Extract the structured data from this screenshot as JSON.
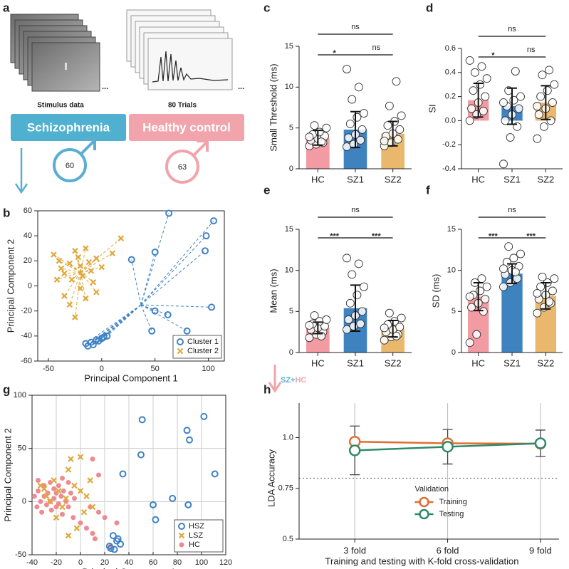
{
  "panel_a": {
    "label": "a",
    "stimulus_caption": "Stimulus data",
    "trials_caption": "80 Trials",
    "ellipsis": "...",
    "sz_button": "Schizophrenia",
    "hc_button": "Healthy control",
    "sz_count": 60,
    "hc_count": 63
  },
  "arrow_label": [
    "SZ+",
    "HC"
  ],
  "chart_data": [
    {
      "type": "scatter",
      "panel_label": "b",
      "xlabel": "Principal Component 1",
      "ylabel": "Principal Component 2",
      "xlim": [
        -60,
        115
      ],
      "xticks": [
        -50,
        0,
        50,
        100
      ],
      "ylim": [
        -60,
        60
      ],
      "yticks": [
        -60,
        -40,
        -20,
        0,
        20,
        40,
        60
      ],
      "grid": false,
      "centroid_lines": true,
      "legend": "lower right",
      "series": [
        {
          "name": "Cluster 1",
          "color": "#3f82c4",
          "marker": "circle",
          "x": [
            63,
            105,
            98,
            97,
            50,
            28,
            103,
            50,
            62,
            47,
            80,
            5,
            0,
            -5,
            -10,
            -15,
            -13,
            -8,
            -3,
            2
          ],
          "y": [
            58,
            52,
            40,
            28,
            27,
            21,
            -17,
            -20,
            -23,
            -36,
            -36,
            -40,
            -42,
            -43,
            -45,
            -46,
            -48,
            -47,
            -44,
            -41
          ]
        },
        {
          "name": "Cluster 2",
          "color": "#e0a83a",
          "marker": "x",
          "x": [
            -45,
            -40,
            -38,
            -35,
            -30,
            -28,
            -25,
            -22,
            -20,
            -18,
            -15,
            -12,
            -10,
            -8,
            -5,
            -35,
            -30,
            -25,
            -20,
            -15,
            -42,
            10,
            18,
            -5,
            0
          ],
          "y": [
            25,
            20,
            14,
            10,
            18,
            5,
            28,
            23,
            16,
            8,
            30,
            19,
            12,
            3,
            22,
            -8,
            -15,
            -25,
            -2,
            -10,
            5,
            26,
            38,
            -5,
            15
          ]
        }
      ]
    },
    {
      "type": "bar",
      "panel_label": "c",
      "ylabel": "Small Threshold (ms)",
      "categories": [
        "HC",
        "SZ1",
        "SZ2"
      ],
      "values": [
        3.8,
        4.8,
        4.3
      ],
      "errors": [
        0.9,
        2.2,
        1.5
      ],
      "colors": [
        "#f29ba2",
        "#3e82c0",
        "#e9b86c"
      ],
      "ylim": [
        0,
        15
      ],
      "yticks": [
        0,
        5,
        10,
        15
      ],
      "points": [
        [
          2.8,
          3.0,
          3.2,
          3.5,
          3.7,
          4.0,
          4.2,
          4.5,
          5.0,
          5.3,
          3.3,
          3.9
        ],
        [
          2.7,
          3.0,
          3.5,
          3.8,
          4.2,
          4.8,
          5.5,
          6.3,
          6.8,
          8.5,
          10.0,
          12.2
        ],
        [
          2.8,
          3.2,
          3.6,
          4.0,
          4.3,
          4.8,
          5.3,
          5.8,
          6.5,
          7.7,
          10.7,
          3.4
        ]
      ],
      "comparisons": [
        {
          "from": "HC",
          "to": "SZ2",
          "label": "ns"
        },
        {
          "from": "HC",
          "to": "SZ1",
          "label": "*"
        },
        {
          "from": "SZ1",
          "to": "SZ2",
          "label": "ns"
        }
      ]
    },
    {
      "type": "bar",
      "panel_label": "d",
      "ylabel": "SI",
      "categories": [
        "HC",
        "SZ1",
        "SZ2"
      ],
      "values": [
        0.17,
        0.12,
        0.15
      ],
      "errors": [
        0.14,
        0.15,
        0.14
      ],
      "colors": [
        "#f29ba2",
        "#3e82c0",
        "#e9b86c"
      ],
      "ylim": [
        -0.4,
        0.6
      ],
      "yticks": [
        -0.4,
        -0.2,
        {
          "value": 0,
          "label": "0.0"
        },
        0.2,
        0.4,
        0.6
      ],
      "points": [
        [
          0.0,
          0.05,
          0.08,
          0.1,
          0.15,
          0.2,
          0.25,
          0.3,
          0.35,
          0.4,
          0.45,
          0.5
        ],
        [
          -0.36,
          -0.14,
          -0.05,
          0.0,
          0.05,
          0.1,
          0.12,
          0.17,
          0.2,
          0.25,
          0.41,
          0.15
        ],
        [
          -0.15,
          -0.05,
          0.0,
          0.05,
          0.1,
          0.15,
          0.2,
          0.25,
          0.3,
          0.38,
          0.42,
          0.12
        ]
      ],
      "comparisons": [
        {
          "from": "HC",
          "to": "SZ2",
          "label": "ns"
        },
        {
          "from": "HC",
          "to": "SZ1",
          "label": "*"
        },
        {
          "from": "SZ1",
          "to": "SZ2",
          "label": "ns"
        }
      ]
    },
    {
      "type": "bar",
      "panel_label": "e",
      "ylabel": "Mean (ms)",
      "categories": [
        "HC",
        "SZ1",
        "SZ2"
      ],
      "values": [
        3.0,
        5.4,
        2.9
      ],
      "errors": [
        0.7,
        2.8,
        1.0
      ],
      "colors": [
        "#f29ba2",
        "#3e82c0",
        "#e9b86c"
      ],
      "ylim": [
        0,
        15
      ],
      "yticks": [
        0,
        5,
        10,
        15
      ],
      "points": [
        [
          1.8,
          2.2,
          2.5,
          2.8,
          3.0,
          3.2,
          3.5,
          3.8,
          4.0,
          4.5,
          2.0,
          3.3
        ],
        [
          2.8,
          3.2,
          3.5,
          4.0,
          4.5,
          5.0,
          6.0,
          7.0,
          8.0,
          9.5,
          10.8,
          11.5
        ],
        [
          1.5,
          1.9,
          2.2,
          2.5,
          2.8,
          3.1,
          3.4,
          3.8,
          4.2,
          4.8,
          2.0,
          3.0
        ]
      ],
      "comparisons": [
        {
          "from": "HC",
          "to": "SZ2",
          "label": "ns"
        },
        {
          "from": "HC",
          "to": "SZ1",
          "label": "***"
        },
        {
          "from": "SZ1",
          "to": "SZ2",
          "label": "***"
        }
      ]
    },
    {
      "type": "bar",
      "panel_label": "f",
      "ylabel": "SD (ms)",
      "categories": [
        "HC",
        "SZ1",
        "SZ2"
      ],
      "values": [
        6.8,
        9.6,
        6.9
      ],
      "errors": [
        1.7,
        1.2,
        1.6
      ],
      "colors": [
        "#f29ba2",
        "#3e82c0",
        "#e9b86c"
      ],
      "ylim": [
        0,
        15
      ],
      "yticks": [
        0,
        5,
        10,
        15
      ],
      "points": [
        [
          1.2,
          2.2,
          5.0,
          5.5,
          6.0,
          6.5,
          7.0,
          7.5,
          8.0,
          8.5,
          9.0,
          6.8
        ],
        [
          8.0,
          8.5,
          9.0,
          9.5,
          10.0,
          10.5,
          11.0,
          11.5,
          12.0,
          12.9,
          9.8,
          10.2
        ],
        [
          4.8,
          5.5,
          6.0,
          6.5,
          7.0,
          7.5,
          8.0,
          8.5,
          9.0,
          9.2,
          6.2,
          7.2
        ]
      ],
      "comparisons": [
        {
          "from": "HC",
          "to": "SZ2",
          "label": "ns"
        },
        {
          "from": "HC",
          "to": "SZ1",
          "label": "***"
        },
        {
          "from": "SZ1",
          "to": "SZ2",
          "label": "***"
        }
      ]
    },
    {
      "type": "scatter",
      "panel_label": "g",
      "xlabel": "Principal Component 1",
      "ylabel": "Principal Component 2",
      "xlim": [
        -40,
        120
      ],
      "xticks": [
        -40,
        -20,
        0,
        20,
        40,
        60,
        80,
        100,
        120
      ],
      "ylim": [
        -50,
        100
      ],
      "yticks": [
        -50,
        0,
        50,
        100
      ],
      "grid": true,
      "centroid_lines": false,
      "legend": "lower right",
      "series": [
        {
          "name": "HSZ",
          "color": "#3f82c4",
          "marker": "circle",
          "x": [
            51,
            102,
            88,
            90,
            50,
            111,
            35,
            60,
            76,
            89,
            62,
            27,
            30,
            33,
            25,
            28,
            24,
            31
          ],
          "y": [
            77,
            80,
            67,
            58,
            44,
            26,
            26,
            -3,
            3,
            -3,
            -17,
            -32,
            -37,
            -40,
            -44,
            -45,
            -42,
            -35
          ]
        },
        {
          "name": "LSZ",
          "color": "#e0a83a",
          "marker": "x",
          "x": [
            -33,
            -28,
            -25,
            -22,
            -18,
            -15,
            -12,
            -10,
            -8,
            0,
            -5,
            0,
            5,
            10,
            8,
            -3,
            -10,
            -20,
            3,
            -30
          ],
          "y": [
            15,
            5,
            0,
            20,
            10,
            -5,
            3,
            30,
            40,
            42,
            15,
            10,
            5,
            -5,
            20,
            -25,
            -32,
            -15,
            -10,
            12
          ]
        },
        {
          "name": "HC",
          "color": "#ee8a92",
          "marker": "dot",
          "x": [
            -38,
            -36,
            -35,
            -33,
            -32,
            -30,
            -30,
            -28,
            -27,
            -25,
            -25,
            -24,
            -22,
            -22,
            -20,
            -20,
            -18,
            -18,
            -16,
            -15,
            -14,
            -12,
            -10,
            -10,
            -8,
            -6,
            -5,
            0,
            5,
            10,
            12,
            15,
            8,
            10,
            15,
            20,
            25,
            30,
            -35,
            -15
          ],
          "y": [
            5,
            -5,
            10,
            0,
            -10,
            15,
            5,
            -3,
            8,
            18,
            0,
            -8,
            12,
            3,
            -5,
            8,
            15,
            -2,
            5,
            -12,
            10,
            0,
            -5,
            18,
            8,
            -15,
            3,
            -20,
            -25,
            -30,
            -35,
            -10,
            -5,
            40,
            25,
            -15,
            -42,
            -20,
            20,
            22
          ]
        }
      ]
    },
    {
      "type": "line",
      "panel_label": "h",
      "ylabel": "LDA Accuracy",
      "xlabel": "Training and testing with K-fold cross-validation",
      "categories": [
        "3 fold",
        "6 fold",
        "9 fold"
      ],
      "ylim": [
        0.5,
        1.1
      ],
      "yticks": [
        0.5,
        0.75,
        {
          "value": 1,
          "label": "1.0"
        }
      ],
      "grid": "x",
      "reference_line": 0.8,
      "legend_title": "Validation",
      "legend": "lower center",
      "series": [
        {
          "name": "Training",
          "color": "#e06e32",
          "values": [
            0.98,
            0.972,
            0.97
          ]
        },
        {
          "name": "Testing",
          "color": "#2f8a68",
          "values": [
            0.937,
            0.955,
            0.972
          ],
          "errors": [
            0.12,
            0.085,
            0.065
          ]
        }
      ]
    }
  ]
}
